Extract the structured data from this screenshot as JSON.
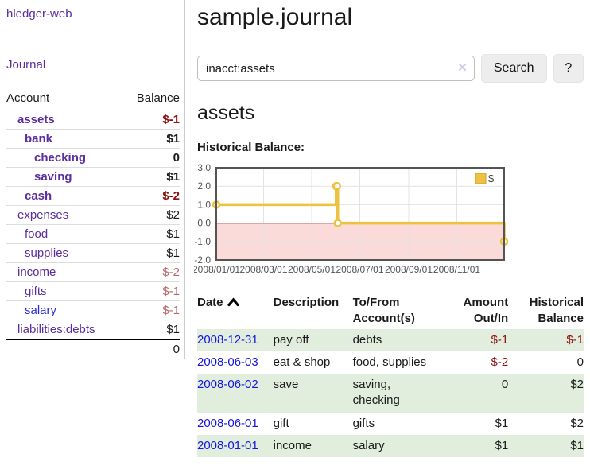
{
  "app": {
    "title": "hledger-web"
  },
  "nav": {
    "journal_label": "Journal"
  },
  "sidebar": {
    "header": {
      "account": "Account",
      "balance": "Balance"
    },
    "accounts": [
      {
        "name": "assets",
        "balance": "$-1"
      },
      {
        "name": "bank",
        "balance": "$1"
      },
      {
        "name": "checking",
        "balance": "0"
      },
      {
        "name": "saving",
        "balance": "$1"
      },
      {
        "name": "cash",
        "balance": "$-2"
      },
      {
        "name": "expenses",
        "balance": "$2"
      },
      {
        "name": "food",
        "balance": "$1"
      },
      {
        "name": "supplies",
        "balance": "$1"
      },
      {
        "name": "income",
        "balance": "$-2"
      },
      {
        "name": "gifts",
        "balance": "$-1"
      },
      {
        "name": "salary",
        "balance": "$-1"
      },
      {
        "name": "liabilities:debts",
        "balance": "$1"
      }
    ],
    "total": "0"
  },
  "header": {
    "title": "sample.journal"
  },
  "search": {
    "query": "inacct:assets",
    "clear_icon": "✕",
    "button_label": "Search",
    "help_label": "?"
  },
  "account_page": {
    "heading": "assets",
    "chart_label": "Historical Balance:"
  },
  "colors": {
    "brand_purple": "#5b2d9e",
    "link_blue": "#1616dd",
    "negative_red": "#8e1212",
    "negative_soft_red": "#b26a6a",
    "row_green": "#e1eede"
  },
  "chart_data": {
    "type": "line",
    "title": "Historical Balance",
    "step": "left",
    "series": [
      {
        "name": "$",
        "color": "#edc240",
        "points": [
          [
            "2008-01-01",
            1
          ],
          [
            "2008-06-01",
            2
          ],
          [
            "2008-06-02",
            2
          ],
          [
            "2008-06-03",
            0
          ],
          [
            "2008-12-31",
            -1
          ]
        ]
      }
    ],
    "xrange": [
      "2008-01-01",
      "2008-12-31"
    ],
    "ylim": [
      -2,
      3
    ],
    "yticks": [
      3.0,
      2.0,
      1.0,
      0.0,
      -1.0,
      -2.0
    ],
    "xtick_labels": [
      "2008/01/01",
      "2008/03/01",
      "2008/05/01",
      "2008/07/01",
      "2008/09/01",
      "2008/11/01"
    ],
    "legend": {
      "label": "$",
      "position": "top-right"
    },
    "grid": true,
    "negative_region_color": "#fbdada",
    "zero_line_color": "#8b0000",
    "border_color": "#545454",
    "tick_text_color": "#545454"
  },
  "table": {
    "headers": {
      "date": "Date",
      "description": "Description",
      "accounts": "To/From Account(s)",
      "amount": "Amount Out/In",
      "balance": "Historical Balance"
    },
    "rows": [
      {
        "date": "2008-12-31",
        "description": "pay off",
        "accounts": "debts",
        "amount": "$-1",
        "balance": "$-1"
      },
      {
        "date": "2008-06-03",
        "description": "eat & shop",
        "accounts": "food, supplies",
        "amount": "$-2",
        "balance": "0"
      },
      {
        "date": "2008-06-02",
        "description": "save",
        "accounts": "saving, checking",
        "amount": "0",
        "balance": "$2"
      },
      {
        "date": "2008-06-01",
        "description": "gift",
        "accounts": "gifts",
        "amount": "$1",
        "balance": "$2"
      },
      {
        "date": "2008-01-01",
        "description": "income",
        "accounts": "salary",
        "amount": "$1",
        "balance": "$1"
      }
    ]
  }
}
